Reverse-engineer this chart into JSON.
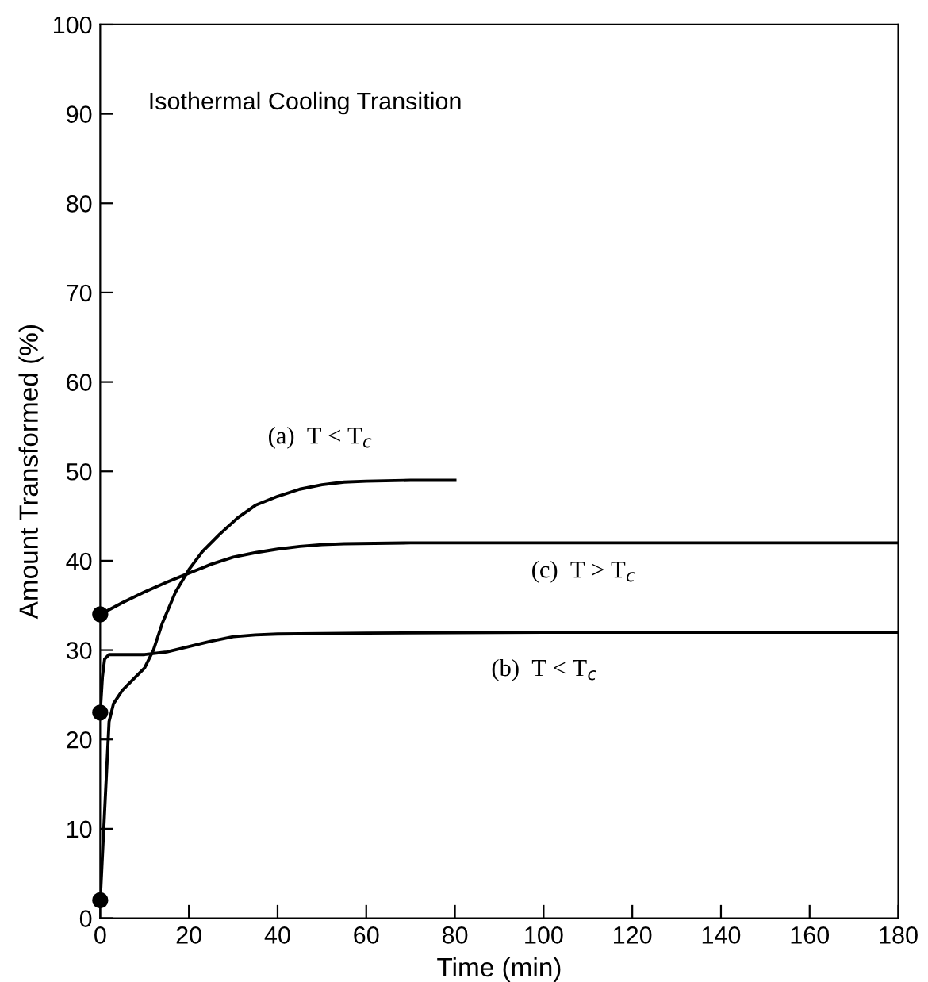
{
  "chart_data": {
    "type": "line",
    "title": "Isothermal Cooling Transition",
    "xlabel": "Time (min)",
    "ylabel": "Amount Transformed (%)",
    "xlim": [
      0,
      180
    ],
    "ylim": [
      0,
      100
    ],
    "xticks": [
      0,
      20,
      40,
      60,
      80,
      100,
      120,
      140,
      160,
      180
    ],
    "yticks": [
      0,
      10,
      20,
      30,
      40,
      50,
      60,
      70,
      80,
      90,
      100
    ],
    "grid": false,
    "legend": false,
    "series": [
      {
        "color": "#000000",
        "x": [
          0,
          1,
          2,
          3,
          5,
          7,
          10,
          12,
          14,
          17,
          20,
          23,
          27,
          31,
          35,
          40,
          45,
          50,
          55,
          60,
          70,
          80
        ],
        "values": [
          2,
          12,
          22,
          24,
          25.5,
          26.5,
          28,
          30,
          33,
          36.5,
          39,
          41,
          43,
          44.8,
          46.2,
          47.2,
          48,
          48.5,
          48.8,
          48.9,
          49,
          49
        ]
      },
      {
        "color": "#000000",
        "x": [
          0,
          0.5,
          1,
          2,
          5,
          10,
          15,
          20,
          25,
          30,
          35,
          40,
          60,
          100,
          140,
          180
        ],
        "values": [
          23,
          27,
          29,
          29.5,
          29.5,
          29.5,
          29.8,
          30.4,
          31,
          31.5,
          31.7,
          31.8,
          31.9,
          32,
          32,
          32
        ]
      },
      {
        "color": "#000000",
        "x": [
          0,
          5,
          10,
          15,
          20,
          25,
          30,
          35,
          40,
          45,
          50,
          55,
          70,
          100,
          140,
          180
        ],
        "values": [
          34,
          35.3,
          36.5,
          37.6,
          38.6,
          39.6,
          40.4,
          40.9,
          41.3,
          41.6,
          41.8,
          41.9,
          42,
          42,
          42,
          42
        ]
      },
      {
        "type": "scatter",
        "marker": "circle",
        "color": "#000000",
        "x": [
          0,
          0,
          0
        ],
        "values": [
          2,
          23,
          34
        ]
      }
    ],
    "annotations": [
      "(a)  T < T$_{c}$",
      "(c)  T > T$_{c}$",
      "(b)  T < T$_{c}$"
    ]
  }
}
